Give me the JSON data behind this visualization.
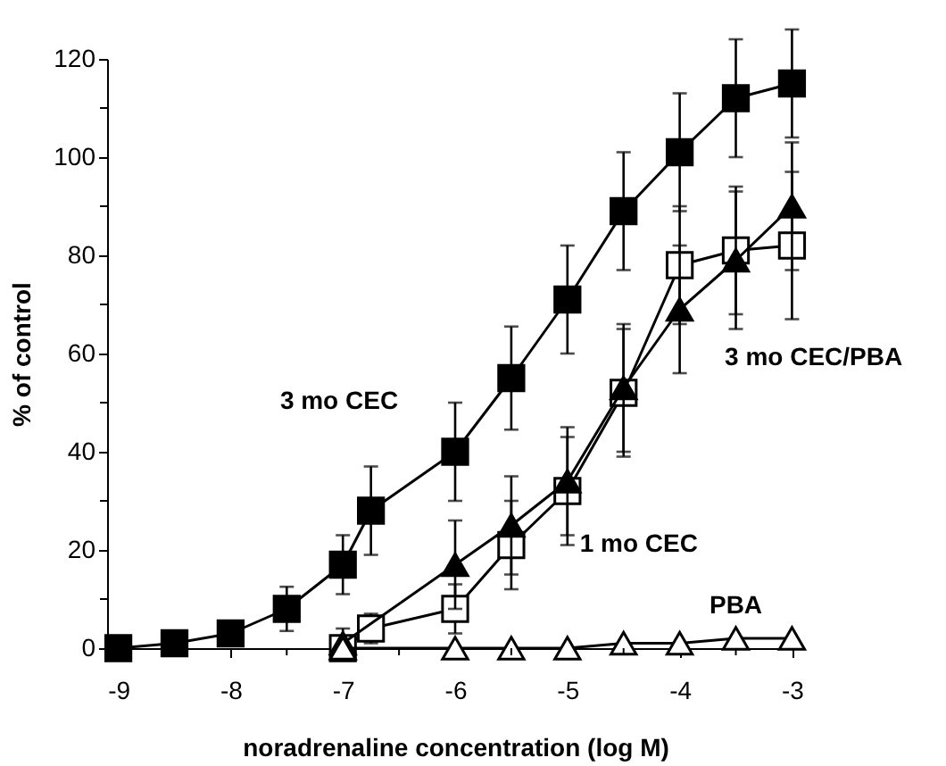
{
  "chart_data": {
    "type": "line",
    "xlabel": "noradrenaline concentration  (log M)",
    "ylabel": "% of control",
    "xlim": [
      -9.1,
      -2.9
    ],
    "xticks": [
      -9,
      {
        "value": -8.5,
        "label": null
      },
      -8,
      {
        "value": -7.5,
        "label": null
      },
      -7,
      {
        "value": -6.5,
        "label": null
      },
      -6,
      {
        "value": -5.5,
        "label": null
      },
      -5,
      {
        "value": -4.5,
        "label": null
      },
      -4,
      {
        "value": -3.5,
        "label": null
      },
      -3
    ],
    "ylim": [
      0,
      120
    ],
    "yticks": [
      0,
      {
        "value": 10,
        "label": null
      },
      20,
      {
        "value": 30,
        "label": null
      },
      40,
      {
        "value": 50,
        "label": null
      },
      60,
      {
        "value": 70,
        "label": null
      },
      80,
      {
        "value": 90,
        "label": null
      },
      100,
      {
        "value": 110,
        "label": null
      },
      120
    ],
    "grid": false,
    "line_style": "solid",
    "series": [
      {
        "name": "3 mo CEC",
        "color": "#000000",
        "marker": "square",
        "x": [
          -9,
          -8.5,
          -8,
          -7.5,
          -7,
          -6.75,
          -6,
          -5.5,
          -5,
          -4.5,
          -4,
          -3.5,
          -3
        ],
        "values": [
          0,
          1,
          3,
          8,
          17,
          28,
          40,
          55,
          71,
          89,
          101,
          112,
          115
        ],
        "errors": [
          null,
          null,
          null,
          4.5,
          6,
          9,
          10,
          10.5,
          11,
          12,
          12,
          12,
          11
        ]
      },
      {
        "name": "1 mo CEC",
        "color": "#000000",
        "marker": "square",
        "x": [
          -7,
          -6.75,
          -6,
          -5.5,
          -5,
          -4.5,
          -4,
          -3.5,
          -3
        ],
        "values": [
          0,
          4,
          8,
          21,
          32,
          52,
          78,
          81,
          82
        ],
        "errors": [
          null,
          3,
          5,
          9,
          11,
          13,
          12,
          13,
          15
        ]
      },
      {
        "name": "3 mo CEC/PBA",
        "color": "#000000",
        "marker": "triangle",
        "x": [
          -7,
          -6,
          -5.5,
          -5,
          -4.5,
          -4,
          -3.5,
          -3
        ],
        "values": [
          1,
          17,
          25,
          34,
          53,
          69,
          79,
          90
        ],
        "errors": [
          3,
          9,
          10,
          11,
          13,
          13,
          14,
          13
        ]
      },
      {
        "name": "PBA",
        "color": "#000000",
        "marker": "triangle",
        "x": [
          -7,
          -6,
          -5.5,
          -5,
          -4.5,
          -4,
          -3.5,
          -3
        ],
        "values": [
          0,
          0,
          0,
          0,
          1,
          1,
          2,
          2
        ]
      }
    ]
  }
}
